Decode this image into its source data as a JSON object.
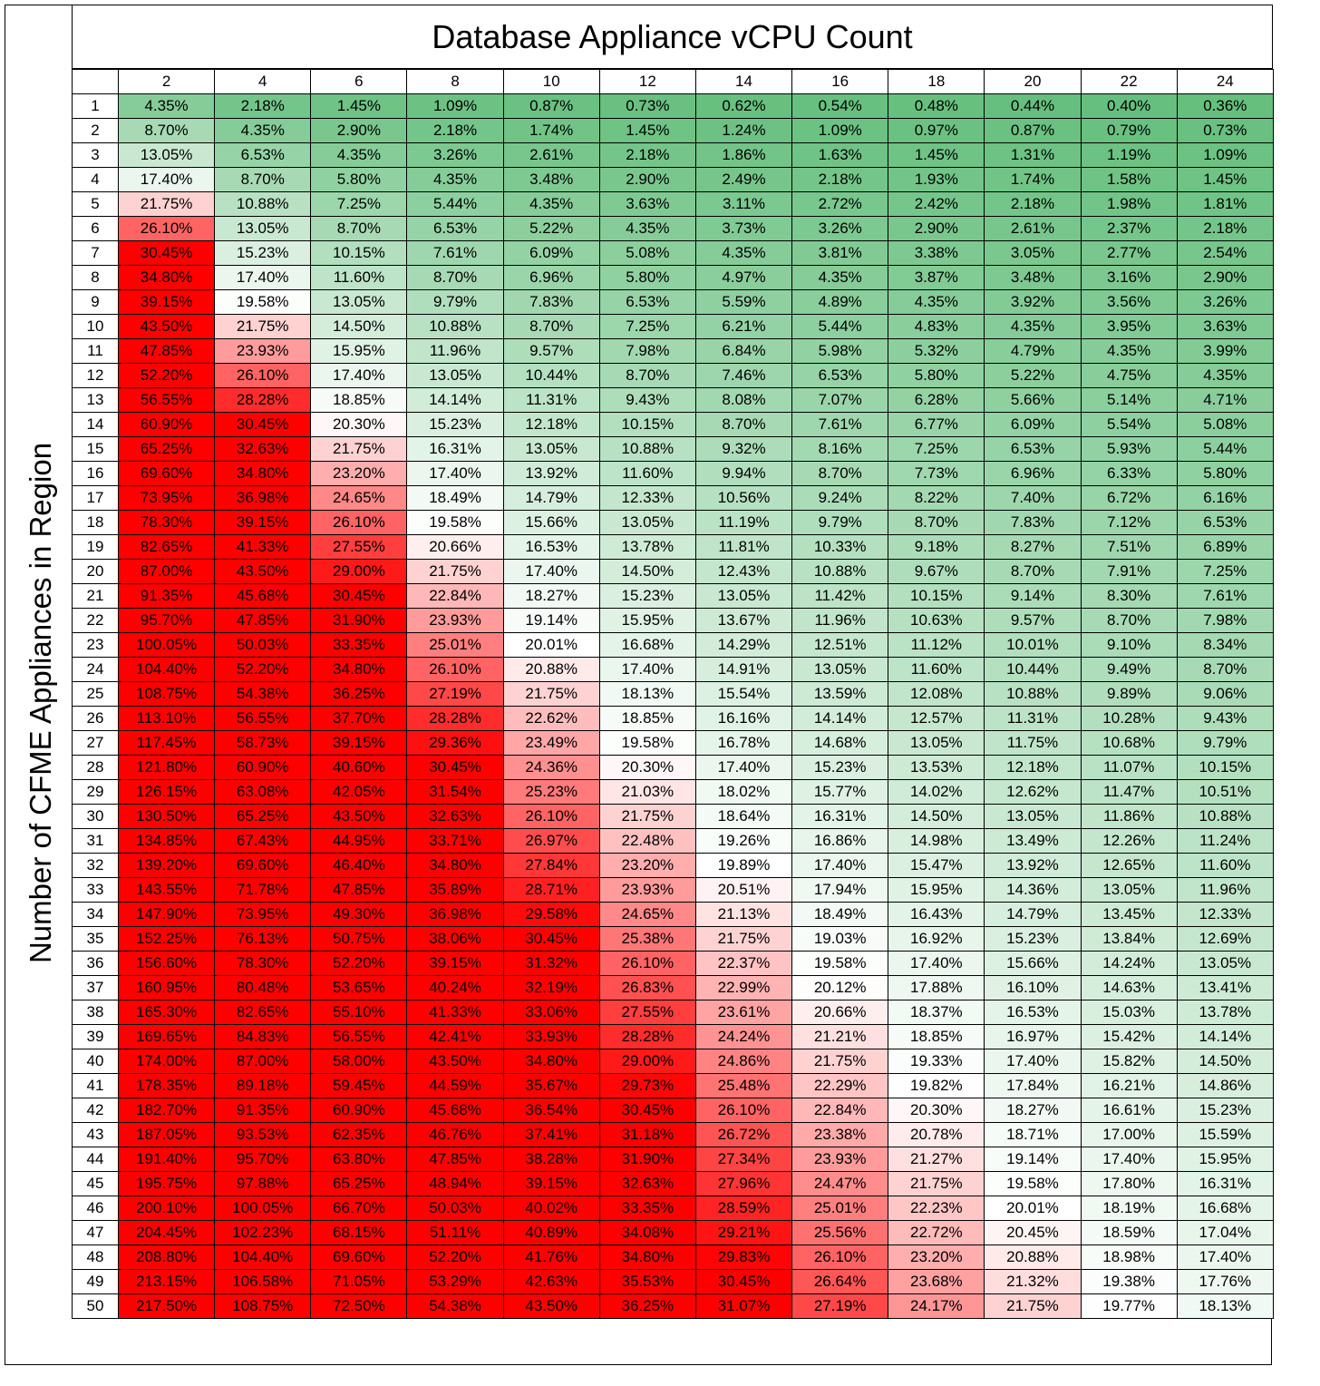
{
  "chart_data": {
    "type": "heatmap",
    "title": "Database Appliance vCPU Count",
    "xlabel": "Database Appliance vCPU Count",
    "ylabel": "Number of CFME Appliances in Region",
    "columns": [
      "2",
      "4",
      "6",
      "8",
      "10",
      "12",
      "14",
      "16",
      "18",
      "20",
      "22",
      "24"
    ],
    "rows": [
      [
        "4.35%",
        "2.18%",
        "1.45%",
        "1.09%",
        "0.87%",
        "0.73%",
        "0.62%",
        "0.54%",
        "0.48%",
        "0.44%",
        "0.40%",
        "0.36%"
      ],
      [
        "8.70%",
        "4.35%",
        "2.90%",
        "2.18%",
        "1.74%",
        "1.45%",
        "1.24%",
        "1.09%",
        "0.97%",
        "0.87%",
        "0.79%",
        "0.73%"
      ],
      [
        "13.05%",
        "6.53%",
        "4.35%",
        "3.26%",
        "2.61%",
        "2.18%",
        "1.86%",
        "1.63%",
        "1.45%",
        "1.31%",
        "1.19%",
        "1.09%"
      ],
      [
        "17.40%",
        "8.70%",
        "5.80%",
        "4.35%",
        "3.48%",
        "2.90%",
        "2.49%",
        "2.18%",
        "1.93%",
        "1.74%",
        "1.58%",
        "1.45%"
      ],
      [
        "21.75%",
        "10.88%",
        "7.25%",
        "5.44%",
        "4.35%",
        "3.63%",
        "3.11%",
        "2.72%",
        "2.42%",
        "2.18%",
        "1.98%",
        "1.81%"
      ],
      [
        "26.10%",
        "13.05%",
        "8.70%",
        "6.53%",
        "5.22%",
        "4.35%",
        "3.73%",
        "3.26%",
        "2.90%",
        "2.61%",
        "2.37%",
        "2.18%"
      ],
      [
        "30.45%",
        "15.23%",
        "10.15%",
        "7.61%",
        "6.09%",
        "5.08%",
        "4.35%",
        "3.81%",
        "3.38%",
        "3.05%",
        "2.77%",
        "2.54%"
      ],
      [
        "34.80%",
        "17.40%",
        "11.60%",
        "8.70%",
        "6.96%",
        "5.80%",
        "4.97%",
        "4.35%",
        "3.87%",
        "3.48%",
        "3.16%",
        "2.90%"
      ],
      [
        "39.15%",
        "19.58%",
        "13.05%",
        "9.79%",
        "7.83%",
        "6.53%",
        "5.59%",
        "4.89%",
        "4.35%",
        "3.92%",
        "3.56%",
        "3.26%"
      ],
      [
        "43.50%",
        "21.75%",
        "14.50%",
        "10.88%",
        "8.70%",
        "7.25%",
        "6.21%",
        "5.44%",
        "4.83%",
        "4.35%",
        "3.95%",
        "3.63%"
      ],
      [
        "47.85%",
        "23.93%",
        "15.95%",
        "11.96%",
        "9.57%",
        "7.98%",
        "6.84%",
        "5.98%",
        "5.32%",
        "4.79%",
        "4.35%",
        "3.99%"
      ],
      [
        "52.20%",
        "26.10%",
        "17.40%",
        "13.05%",
        "10.44%",
        "8.70%",
        "7.46%",
        "6.53%",
        "5.80%",
        "5.22%",
        "4.75%",
        "4.35%"
      ],
      [
        "56.55%",
        "28.28%",
        "18.85%",
        "14.14%",
        "11.31%",
        "9.43%",
        "8.08%",
        "7.07%",
        "6.28%",
        "5.66%",
        "5.14%",
        "4.71%"
      ],
      [
        "60.90%",
        "30.45%",
        "20.30%",
        "15.23%",
        "12.18%",
        "10.15%",
        "8.70%",
        "7.61%",
        "6.77%",
        "6.09%",
        "5.54%",
        "5.08%"
      ],
      [
        "65.25%",
        "32.63%",
        "21.75%",
        "16.31%",
        "13.05%",
        "10.88%",
        "9.32%",
        "8.16%",
        "7.25%",
        "6.53%",
        "5.93%",
        "5.44%"
      ],
      [
        "69.60%",
        "34.80%",
        "23.20%",
        "17.40%",
        "13.92%",
        "11.60%",
        "9.94%",
        "8.70%",
        "7.73%",
        "6.96%",
        "6.33%",
        "5.80%"
      ],
      [
        "73.95%",
        "36.98%",
        "24.65%",
        "18.49%",
        "14.79%",
        "12.33%",
        "10.56%",
        "9.24%",
        "8.22%",
        "7.40%",
        "6.72%",
        "6.16%"
      ],
      [
        "78.30%",
        "39.15%",
        "26.10%",
        "19.58%",
        "15.66%",
        "13.05%",
        "11.19%",
        "9.79%",
        "8.70%",
        "7.83%",
        "7.12%",
        "6.53%"
      ],
      [
        "82.65%",
        "41.33%",
        "27.55%",
        "20.66%",
        "16.53%",
        "13.78%",
        "11.81%",
        "10.33%",
        "9.18%",
        "8.27%",
        "7.51%",
        "6.89%"
      ],
      [
        "87.00%",
        "43.50%",
        "29.00%",
        "21.75%",
        "17.40%",
        "14.50%",
        "12.43%",
        "10.88%",
        "9.67%",
        "8.70%",
        "7.91%",
        "7.25%"
      ],
      [
        "91.35%",
        "45.68%",
        "30.45%",
        "22.84%",
        "18.27%",
        "15.23%",
        "13.05%",
        "11.42%",
        "10.15%",
        "9.14%",
        "8.30%",
        "7.61%"
      ],
      [
        "95.70%",
        "47.85%",
        "31.90%",
        "23.93%",
        "19.14%",
        "15.95%",
        "13.67%",
        "11.96%",
        "10.63%",
        "9.57%",
        "8.70%",
        "7.98%"
      ],
      [
        "100.05%",
        "50.03%",
        "33.35%",
        "25.01%",
        "20.01%",
        "16.68%",
        "14.29%",
        "12.51%",
        "11.12%",
        "10.01%",
        "9.10%",
        "8.34%"
      ],
      [
        "104.40%",
        "52.20%",
        "34.80%",
        "26.10%",
        "20.88%",
        "17.40%",
        "14.91%",
        "13.05%",
        "11.60%",
        "10.44%",
        "9.49%",
        "8.70%"
      ],
      [
        "108.75%",
        "54.38%",
        "36.25%",
        "27.19%",
        "21.75%",
        "18.13%",
        "15.54%",
        "13.59%",
        "12.08%",
        "10.88%",
        "9.89%",
        "9.06%"
      ],
      [
        "113.10%",
        "56.55%",
        "37.70%",
        "28.28%",
        "22.62%",
        "18.85%",
        "16.16%",
        "14.14%",
        "12.57%",
        "11.31%",
        "10.28%",
        "9.43%"
      ],
      [
        "117.45%",
        "58.73%",
        "39.15%",
        "29.36%",
        "23.49%",
        "19.58%",
        "16.78%",
        "14.68%",
        "13.05%",
        "11.75%",
        "10.68%",
        "9.79%"
      ],
      [
        "121.80%",
        "60.90%",
        "40.60%",
        "30.45%",
        "24.36%",
        "20.30%",
        "17.40%",
        "15.23%",
        "13.53%",
        "12.18%",
        "11.07%",
        "10.15%"
      ],
      [
        "126.15%",
        "63.08%",
        "42.05%",
        "31.54%",
        "25.23%",
        "21.03%",
        "18.02%",
        "15.77%",
        "14.02%",
        "12.62%",
        "11.47%",
        "10.51%"
      ],
      [
        "130.50%",
        "65.25%",
        "43.50%",
        "32.63%",
        "26.10%",
        "21.75%",
        "18.64%",
        "16.31%",
        "14.50%",
        "13.05%",
        "11.86%",
        "10.88%"
      ],
      [
        "134.85%",
        "67.43%",
        "44.95%",
        "33.71%",
        "26.97%",
        "22.48%",
        "19.26%",
        "16.86%",
        "14.98%",
        "13.49%",
        "12.26%",
        "11.24%"
      ],
      [
        "139.20%",
        "69.60%",
        "46.40%",
        "34.80%",
        "27.84%",
        "23.20%",
        "19.89%",
        "17.40%",
        "15.47%",
        "13.92%",
        "12.65%",
        "11.60%"
      ],
      [
        "143.55%",
        "71.78%",
        "47.85%",
        "35.89%",
        "28.71%",
        "23.93%",
        "20.51%",
        "17.94%",
        "15.95%",
        "14.36%",
        "13.05%",
        "11.96%"
      ],
      [
        "147.90%",
        "73.95%",
        "49.30%",
        "36.98%",
        "29.58%",
        "24.65%",
        "21.13%",
        "18.49%",
        "16.43%",
        "14.79%",
        "13.45%",
        "12.33%"
      ],
      [
        "152.25%",
        "76.13%",
        "50.75%",
        "38.06%",
        "30.45%",
        "25.38%",
        "21.75%",
        "19.03%",
        "16.92%",
        "15.23%",
        "13.84%",
        "12.69%"
      ],
      [
        "156.60%",
        "78.30%",
        "52.20%",
        "39.15%",
        "31.32%",
        "26.10%",
        "22.37%",
        "19.58%",
        "17.40%",
        "15.66%",
        "14.24%",
        "13.05%"
      ],
      [
        "160.95%",
        "80.48%",
        "53.65%",
        "40.24%",
        "32.19%",
        "26.83%",
        "22.99%",
        "20.12%",
        "17.88%",
        "16.10%",
        "14.63%",
        "13.41%"
      ],
      [
        "165.30%",
        "82.65%",
        "55.10%",
        "41.33%",
        "33.06%",
        "27.55%",
        "23.61%",
        "20.66%",
        "18.37%",
        "16.53%",
        "15.03%",
        "13.78%"
      ],
      [
        "169.65%",
        "84.83%",
        "56.55%",
        "42.41%",
        "33.93%",
        "28.28%",
        "24.24%",
        "21.21%",
        "18.85%",
        "16.97%",
        "15.42%",
        "14.14%"
      ],
      [
        "174.00%",
        "87.00%",
        "58.00%",
        "43.50%",
        "34.80%",
        "29.00%",
        "24.86%",
        "21.75%",
        "19.33%",
        "17.40%",
        "15.82%",
        "14.50%"
      ],
      [
        "178.35%",
        "89.18%",
        "59.45%",
        "44.59%",
        "35.67%",
        "29.73%",
        "25.48%",
        "22.29%",
        "19.82%",
        "17.84%",
        "16.21%",
        "14.86%"
      ],
      [
        "182.70%",
        "91.35%",
        "60.90%",
        "45.68%",
        "36.54%",
        "30.45%",
        "26.10%",
        "22.84%",
        "20.30%",
        "18.27%",
        "16.61%",
        "15.23%"
      ],
      [
        "187.05%",
        "93.53%",
        "62.35%",
        "46.76%",
        "37.41%",
        "31.18%",
        "26.72%",
        "23.38%",
        "20.78%",
        "18.71%",
        "17.00%",
        "15.59%"
      ],
      [
        "191.40%",
        "95.70%",
        "63.80%",
        "47.85%",
        "38.28%",
        "31.90%",
        "27.34%",
        "23.93%",
        "21.27%",
        "19.14%",
        "17.40%",
        "15.95%"
      ],
      [
        "195.75%",
        "97.88%",
        "65.25%",
        "48.94%",
        "39.15%",
        "32.63%",
        "27.96%",
        "24.47%",
        "21.75%",
        "19.58%",
        "17.80%",
        "16.31%"
      ],
      [
        "200.10%",
        "100.05%",
        "66.70%",
        "50.03%",
        "40.02%",
        "33.35%",
        "28.59%",
        "25.01%",
        "22.23%",
        "20.01%",
        "18.19%",
        "16.68%"
      ],
      [
        "204.45%",
        "102.23%",
        "68.15%",
        "51.11%",
        "40.89%",
        "34.08%",
        "29.21%",
        "25.56%",
        "22.72%",
        "20.45%",
        "18.59%",
        "17.04%"
      ],
      [
        "208.80%",
        "104.40%",
        "69.60%",
        "52.20%",
        "41.76%",
        "34.80%",
        "29.83%",
        "26.10%",
        "23.20%",
        "20.88%",
        "18.98%",
        "17.40%"
      ],
      [
        "213.15%",
        "106.58%",
        "71.05%",
        "53.29%",
        "42.63%",
        "35.53%",
        "30.45%",
        "26.64%",
        "23.68%",
        "21.32%",
        "19.38%",
        "17.76%"
      ],
      [
        "217.50%",
        "108.75%",
        "72.50%",
        "54.38%",
        "43.50%",
        "36.25%",
        "31.07%",
        "27.19%",
        "24.17%",
        "21.75%",
        "19.77%",
        "18.13%"
      ]
    ],
    "row_labels": [
      "1",
      "2",
      "3",
      "4",
      "5",
      "6",
      "7",
      "8",
      "9",
      "10",
      "11",
      "12",
      "13",
      "14",
      "15",
      "16",
      "17",
      "18",
      "19",
      "20",
      "21",
      "22",
      "23",
      "24",
      "25",
      "26",
      "27",
      "28",
      "29",
      "30",
      "31",
      "32",
      "33",
      "34",
      "35",
      "36",
      "37",
      "38",
      "39",
      "40",
      "41",
      "42",
      "43",
      "44",
      "45",
      "46",
      "47",
      "48",
      "49",
      "50"
    ],
    "color_scale": {
      "low": "#63be7b",
      "mid": "#ffffff",
      "high": "#ff0000",
      "mid_value": 20,
      "high_value": 30
    }
  }
}
